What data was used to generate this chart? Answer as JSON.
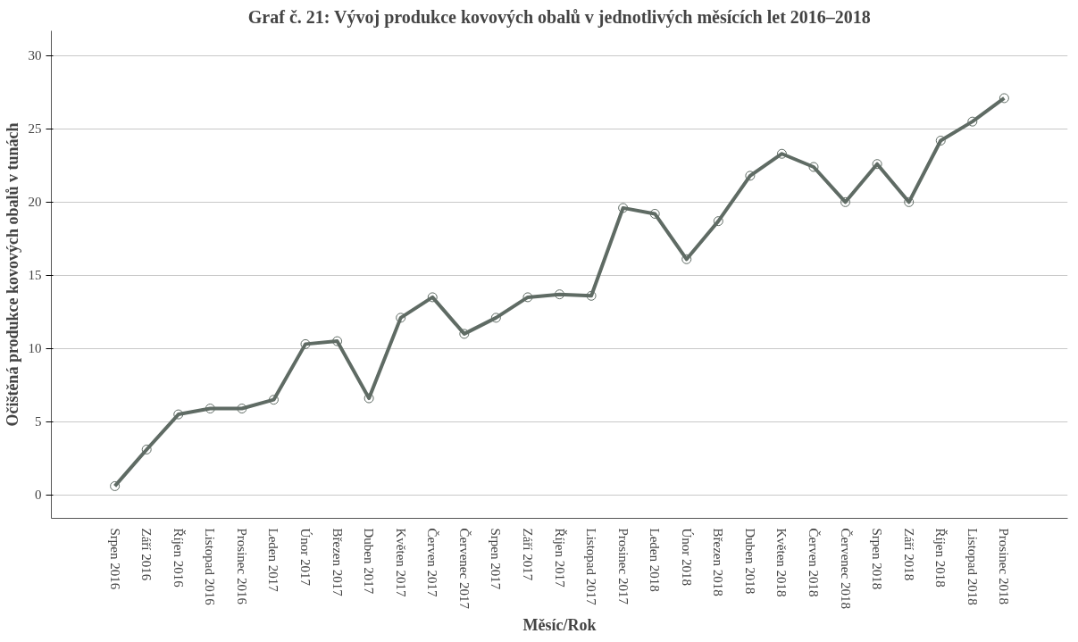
{
  "chart_data": {
    "type": "line",
    "title": "Graf č. 21: Vývoj produkce kovových obalů v jednotlivých měsících let 2016–2018",
    "xlabel": "Měsíc/Rok",
    "ylabel": "Očištěná produkce kovových obalů v tunách",
    "categories": [
      "Srpen 2016",
      "Září 2016",
      "Říjen 2016",
      "Listopad 2016",
      "Prosinec 2016",
      "Leden 2017",
      "Únor 2017",
      "Březen 2017",
      "Duben 2017",
      "Květen 2017",
      "Červen 2017",
      "Červenec 2017",
      "Srpen 2017",
      "Září 2017",
      "Říjen 2017",
      "Listopad 2017",
      "Prosinec 2017",
      "Leden 2018",
      "Únor 2018",
      "Březen 2018",
      "Duben 2018",
      "Květen 2018",
      "Červen 2018",
      "Červenec 2018",
      "Srpen 2018",
      "Září 2018",
      "Říjen 2018",
      "Listopad 2018",
      "Prosinec 2018"
    ],
    "series": [
      {
        "color": "#5f6b64",
        "values": [
          0.6,
          3.1,
          5.5,
          5.9,
          5.9,
          6.5,
          10.3,
          10.5,
          6.6,
          12.1,
          13.5,
          11.0,
          12.1,
          13.5,
          13.7,
          13.6,
          19.6,
          19.2,
          16.1,
          18.7,
          21.8,
          23.3,
          22.4,
          20.0,
          22.6,
          20.0,
          24.2,
          25.5,
          27.1
        ]
      }
    ],
    "ylim": [
      -1.6,
      31.7
    ],
    "yticks": [
      0,
      5,
      10,
      15,
      20,
      25,
      30
    ],
    "grid": "y",
    "marker": "circle",
    "line_style": "solid"
  }
}
